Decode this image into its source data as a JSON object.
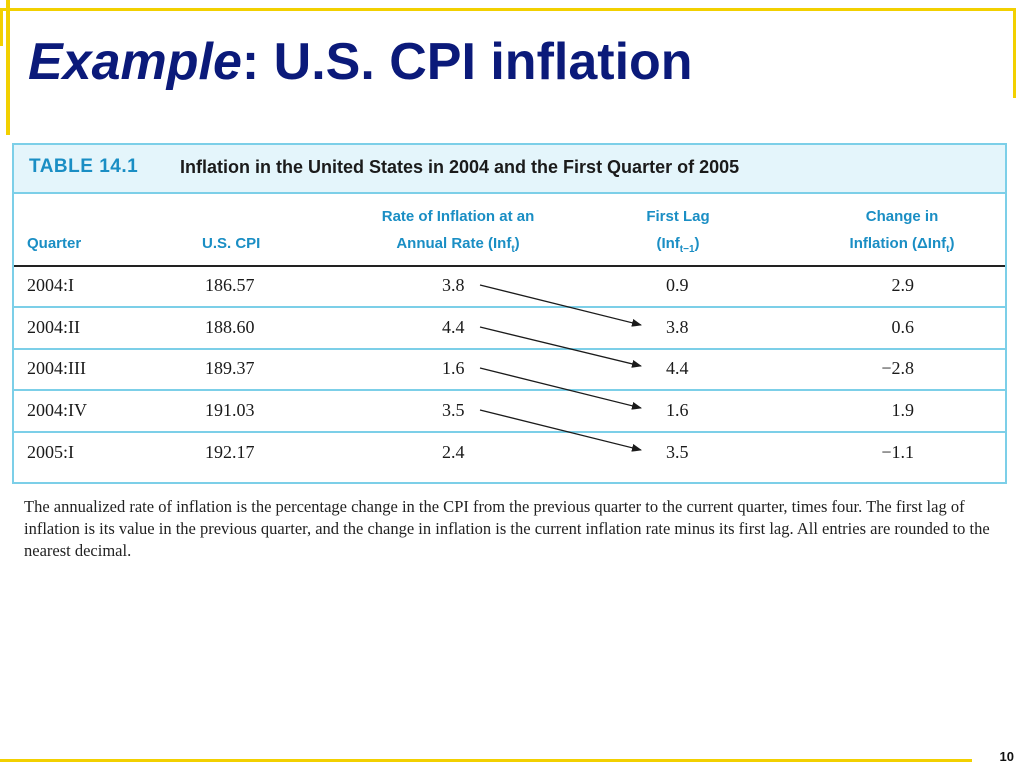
{
  "slide": {
    "title_italic": "Example",
    "title_rest": ":  U.S. CPI inflation",
    "page_number": "10"
  },
  "table": {
    "label": "TABLE 14.1",
    "caption": "Inflation in the United States in 2004 and the First Quarter of 2005",
    "headers": {
      "quarter": "Quarter",
      "cpi": "U.S. CPI",
      "rate_line1": "Rate of Inflation at an",
      "rate_line2": "Annual Rate (Inf",
      "rate_sub": "t",
      "rate_close": ")",
      "lag_line1": "First Lag",
      "lag_line2_open": "(Inf",
      "lag_sub": "t−1",
      "lag_close": ")",
      "change_line1": "Change in",
      "change_line2": "Inflation (ΔInf",
      "change_sub": "t",
      "change_close": ")"
    },
    "rows": [
      {
        "quarter": "2004:I",
        "cpi": "186.57",
        "rate": "3.8",
        "lag": "0.9",
        "change": "2.9"
      },
      {
        "quarter": "2004:II",
        "cpi": "188.60",
        "rate": "4.4",
        "lag": "3.8",
        "change": "0.6"
      },
      {
        "quarter": "2004:III",
        "cpi": "189.37",
        "rate": "1.6",
        "lag": "4.4",
        "change": "−2.8"
      },
      {
        "quarter": "2004:IV",
        "cpi": "191.03",
        "rate": "3.5",
        "lag": "1.6",
        "change": "1.9"
      },
      {
        "quarter": "2005:I",
        "cpi": "192.17",
        "rate": "2.4",
        "lag": "3.5",
        "change": "−1.1"
      }
    ],
    "note": "The annualized rate of inflation is the percentage change in the CPI from the previous quarter to the current quarter, times four. The first lag of inflation is its value in the previous quarter, and the change in inflation is the current inflation rate minus its first lag. All entries are rounded to the nearest decimal."
  },
  "colors": {
    "title": "#0b1a7a",
    "accent": "#f2d000",
    "table_border": "#7ccfe8",
    "header_text": "#1a8ec4"
  }
}
